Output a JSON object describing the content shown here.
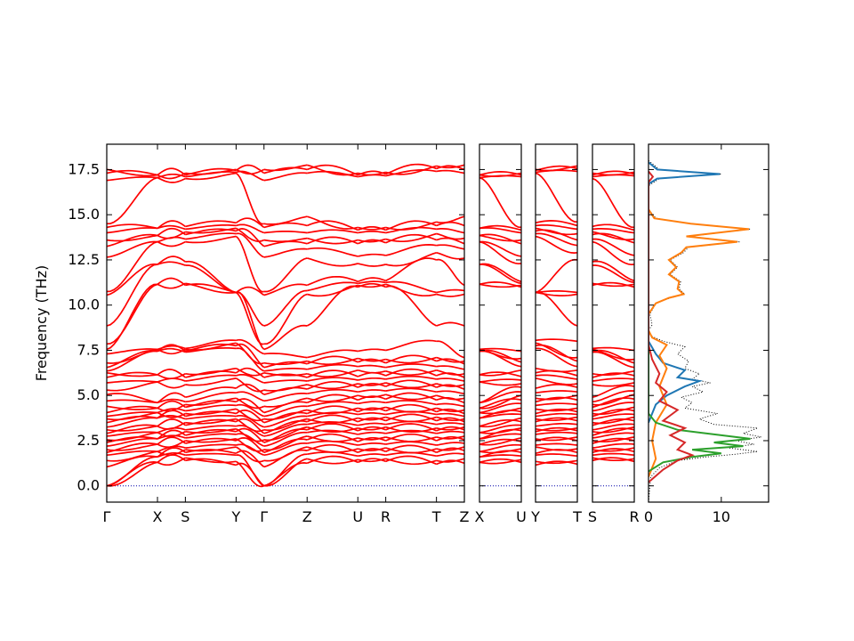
{
  "chart_data": {
    "type": "line",
    "description_free": true,
    "ylabel": "Frequency (THz)",
    "ylim": [
      -0.9,
      18.9
    ],
    "y_ticks": [
      "0.0",
      "2.5",
      "5.0",
      "7.5",
      "10.0",
      "12.5",
      "15.0",
      "17.5"
    ],
    "y_tick_values": [
      0.0,
      2.5,
      5.0,
      7.5,
      10.0,
      12.5,
      15.0,
      17.5
    ],
    "band_color": "#ff0000",
    "zero_line_color": "#0000aa",
    "panels": [
      {
        "segments": [
          {
            "from": "Γ",
            "to": "X",
            "length": 1.0
          },
          {
            "from": "X",
            "to": "S",
            "length": 0.55
          },
          {
            "from": "S",
            "to": "Y",
            "length": 1.0
          },
          {
            "from": "Y",
            "to": "Γ",
            "length": 0.55
          },
          {
            "from": "Γ",
            "to": "Z",
            "length": 0.85
          },
          {
            "from": "Z",
            "to": "U",
            "length": 1.0
          },
          {
            "from": "U",
            "to": "R",
            "length": 0.55
          },
          {
            "from": "R",
            "to": "T",
            "length": 1.0
          },
          {
            "from": "T",
            "to": "Z",
            "length": 0.55
          }
        ],
        "x_tick_labels": [
          "Γ",
          "X",
          "S",
          "Y",
          "Γ",
          "Z",
          "U",
          "R",
          "T",
          "Z"
        ]
      },
      {
        "segments": [
          {
            "from": "X",
            "to": "U",
            "length": 1.0
          }
        ],
        "x_tick_labels": [
          "X",
          "U"
        ]
      },
      {
        "segments": [
          {
            "from": "Y",
            "to": "T",
            "length": 1.0
          }
        ],
        "x_tick_labels": [
          "Y",
          "T"
        ]
      },
      {
        "segments": [
          {
            "from": "S",
            "to": "R",
            "length": 1.0
          }
        ],
        "x_tick_labels": [
          "S",
          "R"
        ]
      }
    ],
    "band_endpoints": {
      "Γ": [
        0.0,
        0.0,
        0.0,
        1.05,
        1.4,
        1.7,
        1.85,
        2.0,
        2.2,
        2.4,
        2.55,
        2.75,
        2.9,
        3.1,
        3.25,
        3.5,
        3.7,
        3.85,
        4.05,
        4.4,
        4.7,
        5.05,
        5.3,
        5.7,
        6.0,
        6.25,
        6.35,
        6.55,
        6.8,
        7.3,
        7.55,
        7.85,
        8.85,
        10.55,
        10.75,
        12.65,
        13.25,
        13.6,
        14.0,
        14.3,
        14.5,
        16.9,
        17.3,
        17.5
      ],
      "X": [
        1.3,
        1.3,
        1.6,
        1.6,
        1.9,
        1.9,
        2.3,
        2.3,
        2.6,
        2.6,
        2.95,
        2.95,
        3.3,
        3.3,
        3.75,
        3.75,
        4.05,
        4.05,
        4.3,
        4.3,
        4.6,
        4.6,
        5.75,
        5.75,
        6.15,
        6.15,
        7.45,
        7.45,
        7.55,
        7.55,
        11.15,
        11.15,
        12.25,
        12.25,
        13.5,
        13.5,
        13.85,
        13.85,
        14.25,
        14.25,
        17.05,
        17.05,
        17.2,
        17.2
      ],
      "S": [
        1.4,
        1.55,
        1.7,
        1.85,
        2.0,
        2.1,
        2.35,
        2.5,
        2.65,
        2.8,
        3.0,
        3.1,
        3.35,
        3.5,
        3.7,
        3.85,
        4.0,
        4.15,
        4.35,
        4.5,
        4.65,
        4.9,
        5.6,
        5.8,
        6.0,
        6.2,
        7.4,
        7.45,
        7.55,
        7.6,
        11.1,
        11.2,
        12.2,
        12.4,
        13.5,
        13.65,
        13.9,
        14.05,
        14.2,
        14.35,
        17.0,
        17.1,
        17.2,
        17.3
      ],
      "Y": [
        1.15,
        1.35,
        1.7,
        1.8,
        2.15,
        2.25,
        2.5,
        2.6,
        2.85,
        3.0,
        3.15,
        3.3,
        3.55,
        3.7,
        3.85,
        4.0,
        4.25,
        4.45,
        4.65,
        4.85,
        5.15,
        5.4,
        5.95,
        6.1,
        6.25,
        6.5,
        7.6,
        7.75,
        7.9,
        8.05,
        10.7,
        10.7,
        10.7,
        10.7,
        13.8,
        13.95,
        14.1,
        14.25,
        14.4,
        14.55,
        17.3,
        17.35,
        17.45,
        17.5
      ],
      "Z": [
        1.25,
        1.5,
        1.75,
        1.95,
        2.15,
        2.35,
        2.55,
        2.75,
        2.95,
        3.1,
        3.25,
        3.4,
        3.55,
        3.7,
        3.85,
        4.0,
        4.2,
        4.4,
        4.6,
        4.85,
        5.1,
        5.35,
        5.6,
        5.8,
        6.0,
        6.2,
        6.45,
        6.75,
        6.9,
        7.1,
        8.85,
        10.6,
        10.8,
        11.1,
        12.6,
        13.1,
        13.4,
        13.7,
        14.0,
        14.4,
        14.9,
        17.3,
        17.5,
        17.75
      ],
      "U": [
        1.3,
        1.45,
        1.65,
        1.85,
        2.05,
        2.25,
        2.45,
        2.65,
        2.85,
        3.05,
        3.2,
        3.35,
        3.55,
        3.75,
        3.95,
        4.1,
        4.3,
        4.55,
        4.75,
        5.0,
        5.2,
        5.45,
        5.65,
        5.85,
        6.05,
        6.4,
        6.6,
        6.85,
        7.05,
        7.45,
        11.0,
        11.1,
        11.2,
        11.3,
        12.3,
        12.7,
        13.4,
        13.6,
        14.0,
        14.15,
        14.3,
        17.1,
        17.2,
        17.3
      ],
      "R": [
        1.35,
        1.5,
        1.7,
        1.9,
        2.1,
        2.3,
        2.5,
        2.7,
        2.9,
        3.1,
        3.25,
        3.4,
        3.6,
        3.8,
        3.95,
        4.15,
        4.35,
        4.6,
        4.8,
        5.05,
        5.25,
        5.5,
        5.7,
        5.9,
        6.1,
        6.35,
        6.55,
        6.8,
        7.0,
        7.5,
        11.0,
        11.15,
        11.25,
        11.35,
        12.25,
        12.75,
        13.45,
        13.65,
        14.0,
        14.15,
        14.3,
        17.15,
        17.25,
        17.35
      ],
      "T": [
        1.2,
        1.4,
        1.65,
        1.85,
        2.05,
        2.25,
        2.5,
        2.7,
        2.9,
        3.05,
        3.2,
        3.4,
        3.6,
        3.8,
        3.95,
        4.1,
        4.3,
        4.5,
        4.75,
        5.0,
        5.2,
        5.45,
        5.65,
        5.9,
        6.1,
        6.4,
        6.6,
        6.9,
        7.1,
        8.0,
        8.85,
        10.6,
        10.7,
        12.5,
        12.9,
        13.3,
        13.6,
        13.95,
        14.2,
        14.4,
        14.6,
        17.4,
        17.55,
        17.7
      ]
    },
    "dos": {
      "x_tick_labels": [
        "0",
        "10"
      ],
      "x_tick_values": [
        0,
        10
      ],
      "xlim": [
        0,
        16.5
      ],
      "series": [
        {
          "color": "#000000",
          "style": "dotted",
          "points": [
            [
              0,
              -0.9
            ],
            [
              0.3,
              0.5
            ],
            [
              1.5,
              1.0
            ],
            [
              4,
              1.4
            ],
            [
              8,
              1.6
            ],
            [
              12,
              1.75
            ],
            [
              15,
              1.9
            ],
            [
              11,
              2.1
            ],
            [
              14.5,
              2.3
            ],
            [
              12,
              2.5
            ],
            [
              15.5,
              2.7
            ],
            [
              13,
              2.9
            ],
            [
              15,
              3.2
            ],
            [
              9,
              3.4
            ],
            [
              7,
              3.7
            ],
            [
              9.5,
              4.0
            ],
            [
              5,
              4.3
            ],
            [
              6,
              4.6
            ],
            [
              4.5,
              4.9
            ],
            [
              7.5,
              5.2
            ],
            [
              6,
              5.5
            ],
            [
              8.5,
              5.7
            ],
            [
              6,
              5.9
            ],
            [
              7,
              6.2
            ],
            [
              5,
              6.5
            ],
            [
              5.5,
              6.9
            ],
            [
              4,
              7.3
            ],
            [
              5,
              7.7
            ],
            [
              2,
              8.0
            ],
            [
              0.3,
              8.3
            ],
            [
              0,
              8.6
            ],
            [
              0.5,
              8.9
            ],
            [
              0.2,
              9.5
            ],
            [
              1,
              10.1
            ],
            [
              3,
              10.4
            ],
            [
              5,
              10.6
            ],
            [
              4.2,
              10.9
            ],
            [
              4.4,
              11.3
            ],
            [
              3,
              11.7
            ],
            [
              4,
              12.1
            ],
            [
              3,
              12.5
            ],
            [
              4.8,
              12.9
            ],
            [
              5.5,
              13.2
            ],
            [
              12.5,
              13.5
            ],
            [
              5.5,
              13.8
            ],
            [
              14,
              14.2
            ],
            [
              6,
              14.5
            ],
            [
              1,
              14.8
            ],
            [
              0,
              15.3
            ],
            [
              0,
              16.6
            ],
            [
              1.5,
              17.0
            ],
            [
              10,
              17.25
            ],
            [
              1.5,
              17.5
            ],
            [
              0,
              18.0
            ]
          ]
        },
        {
          "color": "#1f77b4",
          "style": "solid",
          "points": [
            [
              0,
              3.5
            ],
            [
              1,
              4.5
            ],
            [
              2.5,
              5.0
            ],
            [
              5,
              5.5
            ],
            [
              7,
              5.8
            ],
            [
              4,
              6.0
            ],
            [
              5,
              6.4
            ],
            [
              2,
              6.8
            ],
            [
              1,
              7.3
            ],
            [
              0,
              8.0
            ],
            [
              0,
              16.7
            ],
            [
              1.2,
              17.0
            ],
            [
              9.8,
              17.25
            ],
            [
              1.2,
              17.5
            ],
            [
              0,
              17.9
            ]
          ]
        },
        {
          "color": "#ff7f0e",
          "style": "solid",
          "points": [
            [
              0,
              0.5
            ],
            [
              1,
              1.5
            ],
            [
              0.5,
              2.5
            ],
            [
              1,
              3.5
            ],
            [
              2.5,
              4.5
            ],
            [
              1.5,
              5.5
            ],
            [
              2.5,
              6.5
            ],
            [
              1.5,
              7.2
            ],
            [
              2.5,
              7.8
            ],
            [
              0.5,
              8.2
            ],
            [
              0,
              8.6
            ],
            [
              0,
              9.5
            ],
            [
              1,
              10.1
            ],
            [
              2.8,
              10.4
            ],
            [
              4.8,
              10.6
            ],
            [
              4,
              10.9
            ],
            [
              4.2,
              11.3
            ],
            [
              2.8,
              11.7
            ],
            [
              3.8,
              12.1
            ],
            [
              2.8,
              12.5
            ],
            [
              4.5,
              12.9
            ],
            [
              5.2,
              13.2
            ],
            [
              12.2,
              13.5
            ],
            [
              5.2,
              13.8
            ],
            [
              13.8,
              14.2
            ],
            [
              5.8,
              14.5
            ],
            [
              0.8,
              14.8
            ],
            [
              0,
              15.3
            ]
          ]
        },
        {
          "color": "#2ca02c",
          "style": "solid",
          "points": [
            [
              0,
              0.8
            ],
            [
              2,
              1.3
            ],
            [
              6,
              1.6
            ],
            [
              10,
              1.8
            ],
            [
              6,
              2.0
            ],
            [
              13,
              2.2
            ],
            [
              9,
              2.4
            ],
            [
              14,
              2.6
            ],
            [
              10,
              2.8
            ],
            [
              4,
              3.1
            ],
            [
              1,
              3.5
            ],
            [
              0,
              4.0
            ],
            [
              0,
              16.6
            ]
          ]
        },
        {
          "color": "#d62728",
          "style": "solid",
          "points": [
            [
              0,
              0.2
            ],
            [
              2,
              0.9
            ],
            [
              4,
              1.4
            ],
            [
              6,
              1.7
            ],
            [
              4,
              2.0
            ],
            [
              5,
              2.4
            ],
            [
              3,
              2.8
            ],
            [
              5,
              3.2
            ],
            [
              2,
              3.6
            ],
            [
              4,
              4.2
            ],
            [
              1.5,
              4.7
            ],
            [
              2.5,
              5.2
            ],
            [
              1,
              5.7
            ],
            [
              1.5,
              6.2
            ],
            [
              0.5,
              7.0
            ],
            [
              0,
              7.8
            ],
            [
              0,
              16.8
            ],
            [
              0.6,
              17.1
            ],
            [
              0,
              17.4
            ]
          ]
        }
      ]
    }
  }
}
